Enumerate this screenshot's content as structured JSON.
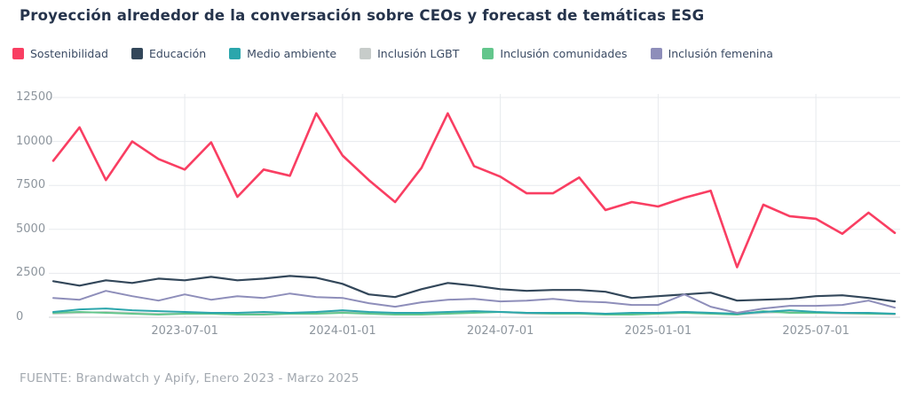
{
  "chart_data": {
    "type": "line",
    "title": "Proyección alrededor de la conversación sobre CEOs y forecast de temáticas ESG",
    "x": [
      "2023-02-01",
      "2023-03-01",
      "2023-04-01",
      "2023-05-01",
      "2023-06-01",
      "2023-07-01",
      "2023-08-01",
      "2023-09-01",
      "2023-10-01",
      "2023-11-01",
      "2023-12-01",
      "2024-01-01",
      "2024-02-01",
      "2024-03-01",
      "2024-04-01",
      "2024-05-01",
      "2024-06-01",
      "2024-07-01",
      "2024-08-01",
      "2024-09-01",
      "2024-10-01",
      "2024-11-01",
      "2024-12-01",
      "2025-01-01",
      "2025-02-01",
      "2025-03-01",
      "2025-04-01",
      "2025-05-01",
      "2025-06-01",
      "2025-07-01",
      "2025-08-01",
      "2025-09-01",
      "2025-10-01"
    ],
    "series": [
      {
        "id": "sostenibilidad",
        "name": "Sostenibilidad",
        "color": "#f93e62",
        "width": 2.6,
        "values": [
          8900,
          10800,
          7800,
          10000,
          9000,
          8400,
          9950,
          6850,
          8400,
          8050,
          11600,
          9200,
          7800,
          6550,
          8500,
          11600,
          8600,
          8000,
          7050,
          7050,
          7950,
          6100,
          6550,
          6300,
          6800,
          7200,
          2850,
          6400,
          5750,
          5600,
          4750,
          5950,
          4800
        ]
      },
      {
        "id": "educacion",
        "name": "Educación",
        "color": "#33475a",
        "width": 2.2,
        "values": [
          2050,
          1800,
          2100,
          1950,
          2200,
          2100,
          2300,
          2100,
          2200,
          2350,
          2250,
          1900,
          1300,
          1150,
          1600,
          1950,
          1800,
          1600,
          1500,
          1550,
          1550,
          1450,
          1100,
          1200,
          1300,
          1400,
          950,
          1000,
          1050,
          1200,
          1250,
          1100,
          900
        ]
      },
      {
        "id": "medio-ambiente",
        "name": "Medio ambiente",
        "color": "#2ba6ac",
        "width": 2,
        "values": [
          300,
          450,
          500,
          400,
          350,
          300,
          250,
          250,
          300,
          250,
          300,
          400,
          300,
          250,
          250,
          300,
          350,
          300,
          250,
          250,
          250,
          200,
          250,
          250,
          300,
          250,
          200,
          300,
          400,
          300,
          250,
          250,
          200
        ]
      },
      {
        "id": "inclusion-lgbt",
        "name": "Inclusión LGBT",
        "color": "#c7ccca",
        "width": 2,
        "values": [
          200,
          250,
          300,
          250,
          200,
          200,
          250,
          200,
          200,
          250,
          250,
          300,
          250,
          200,
          200,
          250,
          350,
          300,
          200,
          200,
          250,
          200,
          200,
          250,
          300,
          250,
          150,
          250,
          300,
          250,
          200,
          200,
          150
        ]
      },
      {
        "id": "inclusion-comunidades",
        "name": "Inclusión comunidades",
        "color": "#63c68c",
        "width": 2,
        "values": [
          250,
          300,
          250,
          200,
          150,
          200,
          200,
          150,
          150,
          200,
          200,
          250,
          200,
          150,
          150,
          200,
          250,
          300,
          250,
          200,
          200,
          150,
          150,
          200,
          250,
          200,
          150,
          350,
          250,
          250,
          250,
          200,
          200
        ]
      },
      {
        "id": "inclusion-femenina",
        "name": "Inclusión femenina",
        "color": "#8e8eba",
        "width": 2,
        "values": [
          1100,
          1000,
          1500,
          1200,
          950,
          1300,
          1000,
          1200,
          1100,
          1350,
          1150,
          1100,
          800,
          600,
          850,
          1000,
          1050,
          900,
          950,
          1050,
          900,
          850,
          700,
          700,
          1300,
          600,
          250,
          500,
          650,
          650,
          700,
          950,
          550
        ]
      }
    ],
    "y_ticks": [
      0,
      2500,
      5000,
      7500,
      10000,
      12500
    ],
    "x_ticks": [
      {
        "index": 5,
        "label": "2023-07-01"
      },
      {
        "index": 11,
        "label": "2024-01-01"
      },
      {
        "index": 17,
        "label": "2024-07-01"
      },
      {
        "index": 23,
        "label": "2025-01-01"
      },
      {
        "index": 29,
        "label": "2025-07-01"
      }
    ],
    "ylim": [
      0,
      12500
    ],
    "grid": true,
    "legend_position": "top",
    "draw_order": [
      "inclusion-lgbt",
      "inclusion-comunidades",
      "medio-ambiente",
      "educacion",
      "inclusion-femenina",
      "sostenibilidad"
    ]
  },
  "footer": {
    "text": "FUENTE: Brandwatch y Apify, Enero 2023 - Marzo 2025"
  }
}
